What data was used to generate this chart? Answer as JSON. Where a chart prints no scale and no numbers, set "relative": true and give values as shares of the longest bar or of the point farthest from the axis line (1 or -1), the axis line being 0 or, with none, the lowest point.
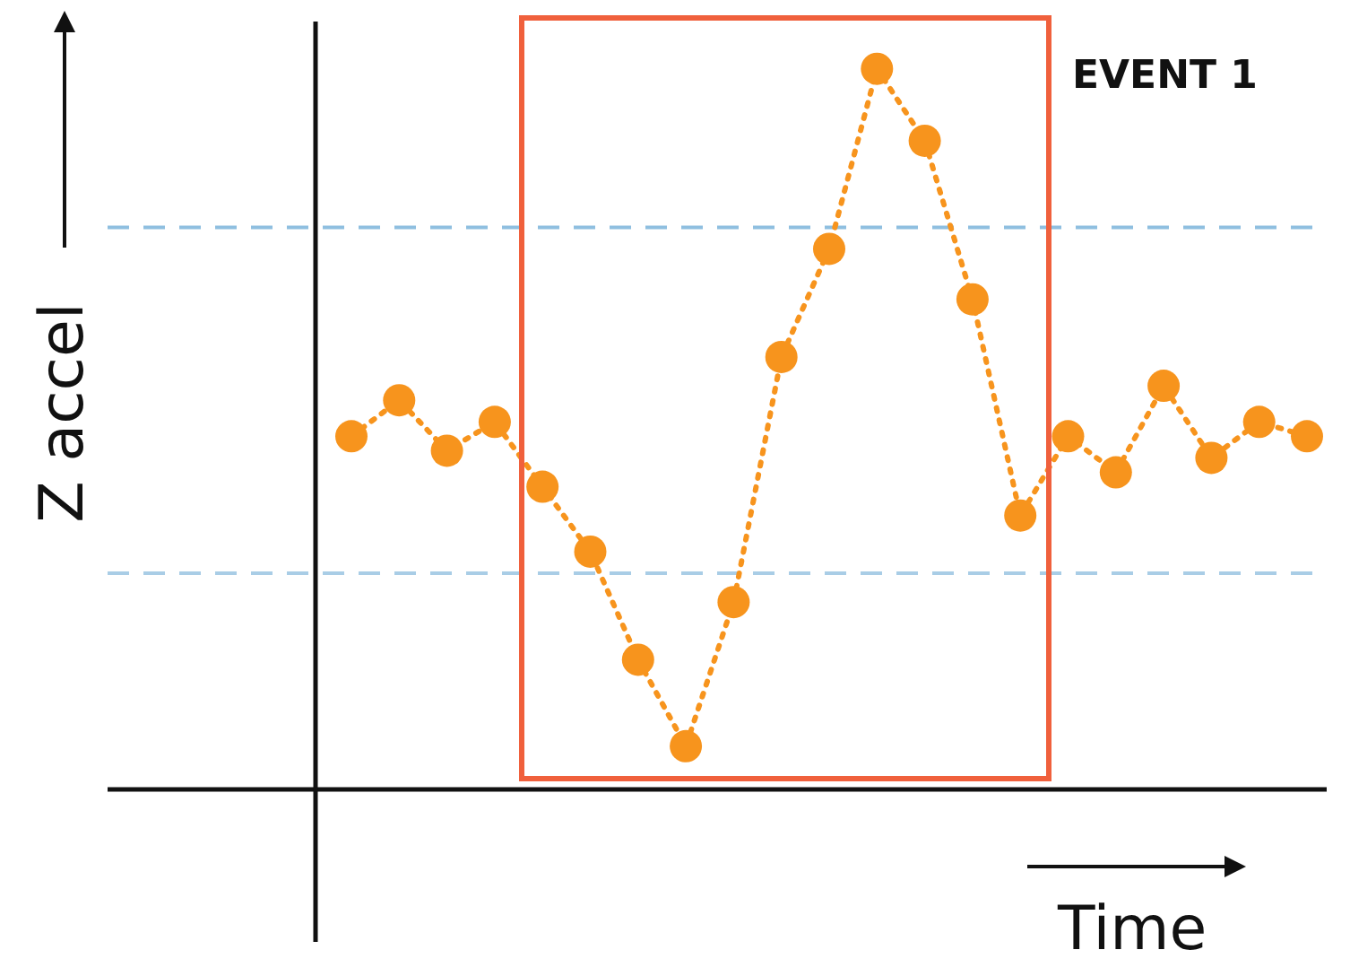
{
  "chart_data": {
    "type": "line",
    "relative": true,
    "xlabel": "Time",
    "ylabel": "Z accel",
    "marker": "circle",
    "line_style": "dotted",
    "categories": [
      null,
      null,
      null,
      null,
      null,
      null,
      null,
      null,
      null,
      null,
      null,
      null,
      null,
      null,
      null,
      null,
      null,
      null,
      null,
      null,
      null
    ],
    "series": [
      {
        "color": "#f7941d",
        "values": [
          0.49,
          0.54,
          0.47,
          0.51,
          0.42,
          0.33,
          0.18,
          0.06,
          0.26,
          0.6,
          0.75,
          1,
          0.9,
          0.68,
          0.38,
          0.49,
          0.44,
          0.56,
          0.46,
          0.51,
          0.49
        ]
      }
    ],
    "ref_lines": [
      {
        "axis": "y",
        "value": 0.78,
        "color": "#8fbfe0",
        "line_style": "dashed"
      },
      {
        "axis": "y",
        "value": 0.3,
        "color": "#a9cde6",
        "line_style": "dashed"
      }
    ],
    "annotations": [
      "EVENT 1"
    ]
  }
}
